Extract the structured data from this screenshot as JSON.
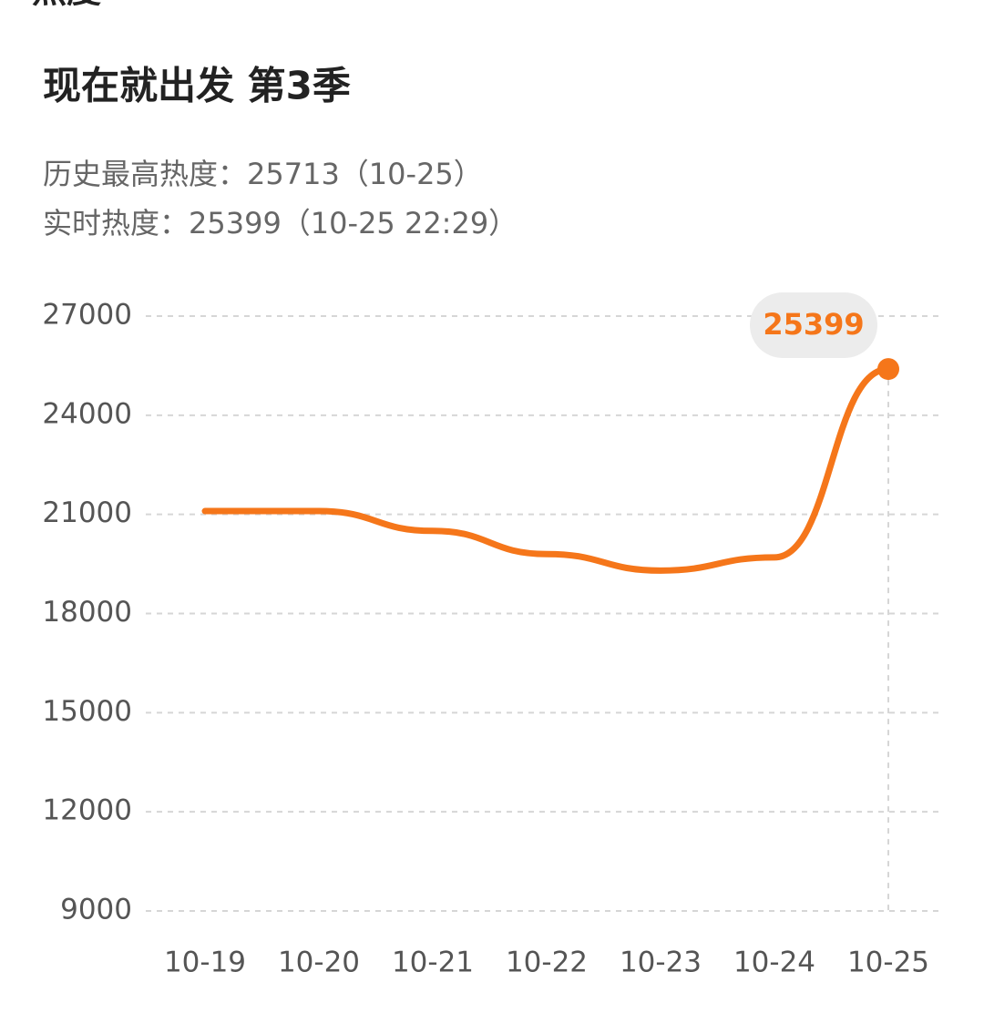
{
  "header": "热度",
  "chart_data": {
    "type": "line",
    "title": "现在就出发 第3季",
    "subtitles": [
      "历史最高热度：25713（10-25）",
      "实时热度：25399（10-25 22:29）"
    ],
    "categories": [
      "10-19",
      "10-20",
      "10-21",
      "10-22",
      "10-23",
      "10-24",
      "10-25"
    ],
    "series": [
      {
        "name": "实时热度",
        "color": "#f5761a",
        "values": [
          21100,
          21100,
          20500,
          19800,
          19300,
          19700,
          25399
        ]
      }
    ],
    "ylim": [
      9000,
      27000
    ],
    "yticks": [
      9000,
      12000,
      15000,
      18000,
      21000,
      24000,
      27000
    ],
    "grid": true
  }
}
